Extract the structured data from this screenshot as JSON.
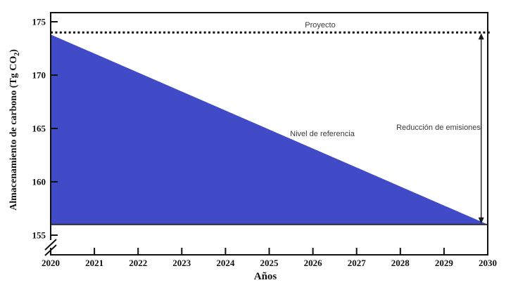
{
  "chart_data": {
    "type": "area",
    "title": "",
    "xlabel": "Años",
    "ylabel": "Almacenamiento de carbono (Tg CO2)",
    "ylabel_parts": {
      "pre": "Almacenamiento de carbono (Tg CO",
      "sub": "2",
      "post": ")"
    },
    "x_ticks": [
      2020,
      2021,
      2022,
      2023,
      2024,
      2025,
      2026,
      2027,
      2028,
      2029,
      2030
    ],
    "y_ticks": [
      175,
      170,
      165,
      160,
      155
    ],
    "xlim": [
      2020,
      2030
    ],
    "ylim_visible": [
      153.5,
      176
    ],
    "y_axis_break_below": 155,
    "grid": false,
    "proyecto": {
      "label": "Proyecto",
      "level": 174,
      "line_style": "dotted"
    },
    "reference": {
      "label": "Nivel de referencia",
      "x": [
        2020,
        2030
      ],
      "y": [
        174,
        156
      ]
    },
    "baseline": 156,
    "reduction_arrow": {
      "label": "Reducción de emisiones",
      "x": 2029.85,
      "from": 174,
      "to": 156
    },
    "colors": {
      "area_fill": "#414BC8",
      "baseline_edge": "#26262b",
      "axis": "#111111",
      "annotation_text": "#3a3a3a"
    }
  }
}
